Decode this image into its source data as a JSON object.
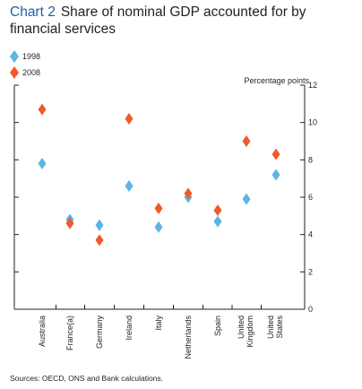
{
  "title": {
    "number": "Chart 2",
    "text": "Share of nominal GDP accounted for by financial services"
  },
  "legend": [
    {
      "label": "1998",
      "color": "#5ab4e5"
    },
    {
      "label": "2008",
      "color": "#f05a28"
    }
  ],
  "y_unit_label": "Percentage points",
  "sources": "Sources: OECD, ONS and Bank calculations.",
  "chart_data": {
    "type": "scatter",
    "categories": [
      "Australia",
      "France(a)",
      "Germany",
      "Ireland",
      "Italy",
      "Netherlands",
      "Spain",
      "United Kingdom",
      "United States"
    ],
    "series": [
      {
        "name": "1998",
        "color": "#5ab4e5",
        "values": [
          7.8,
          4.8,
          4.5,
          6.6,
          4.4,
          6.0,
          4.7,
          5.9,
          7.2
        ]
      },
      {
        "name": "2008",
        "color": "#f05a28",
        "values": [
          10.7,
          4.6,
          3.7,
          10.2,
          5.4,
          6.2,
          5.3,
          9.0,
          8.3
        ]
      }
    ],
    "ylim": [
      0,
      12
    ],
    "yticks": [
      0,
      2,
      4,
      6,
      8,
      10,
      12
    ],
    "ylabel": "Percentage points",
    "legend_position": "top-left"
  }
}
